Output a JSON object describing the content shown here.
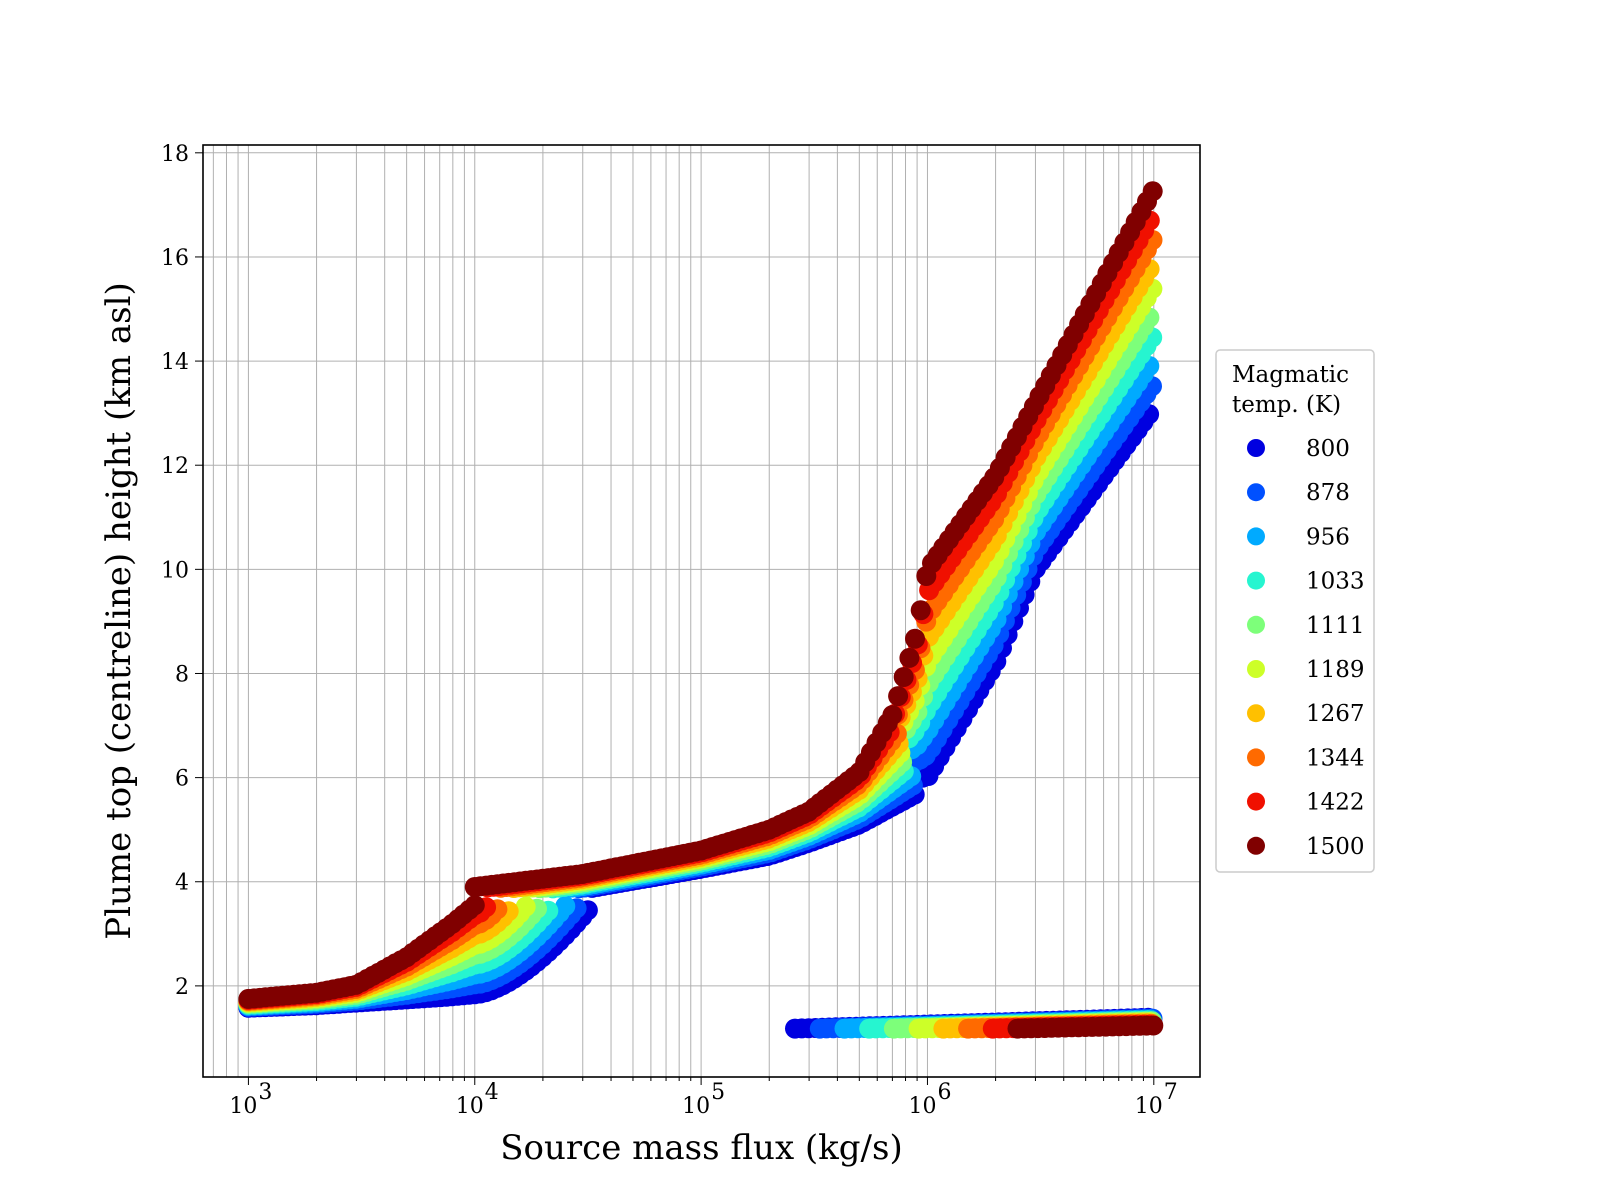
{
  "chart_data": {
    "type": "scatter",
    "xlabel": "Source mass flux (kg/s)",
    "ylabel": "Plume top (centreline) height (km asl)",
    "x_scale": "log",
    "xlim": [
      630,
      16000000
    ],
    "ylim": [
      0.25,
      18.15
    ],
    "grid": true,
    "grid_minor_x": true,
    "x_ticks": [
      {
        "value": 1000,
        "base": "10",
        "exp": "3"
      },
      {
        "value": 10000,
        "base": "10",
        "exp": "4"
      },
      {
        "value": 100000,
        "base": "10",
        "exp": "5"
      },
      {
        "value": 1000000,
        "base": "10",
        "exp": "6"
      },
      {
        "value": 10000000,
        "base": "10",
        "exp": "7"
      }
    ],
    "y_ticks": [
      "2",
      "4",
      "6",
      "8",
      "10",
      "12",
      "14",
      "16",
      "18"
    ],
    "legend": {
      "title": [
        "Magmatic",
        "temp. (K)"
      ],
      "placement": "right-outside",
      "entries": [
        {
          "label": "800",
          "color": "#0000e0"
        },
        {
          "label": "878",
          "color": "#0050ff"
        },
        {
          "label": "956",
          "color": "#00aaff"
        },
        {
          "label": "1033",
          "color": "#26f5d0"
        },
        {
          "label": "1111",
          "color": "#7dff7a"
        },
        {
          "label": "1189",
          "color": "#cdff28"
        },
        {
          "label": "1267",
          "color": "#ffc000"
        },
        {
          "label": "1344",
          "color": "#ff6a00"
        },
        {
          "label": "1422",
          "color": "#f01000"
        },
        {
          "label": "1500",
          "color": "#800000"
        }
      ]
    },
    "series_curves": {
      "low_branch_x": [
        1000,
        2000,
        3000,
        5000,
        8000,
        10000
      ],
      "low_branch_y": {
        "800": [
          1.58,
          1.63,
          1.68,
          1.74,
          1.8,
          1.84
        ],
        "1500": [
          1.75,
          1.87,
          2.02,
          2.55,
          3.2,
          3.55
        ]
      },
      "low_branch_end_x": {
        "800": 33000,
        "1500": 10000
      },
      "mid_branch_x": [
        10000,
        30000,
        100000,
        200000,
        300000,
        500000
      ],
      "mid_branch_y": {
        "800": [
          3.55,
          3.85,
          4.25,
          4.5,
          4.75,
          5.1
        ],
        "1500": [
          3.9,
          4.15,
          4.6,
          5.0,
          5.35,
          6.1
        ]
      },
      "upper_branch": {
        "800": {
          "x": [
            1000000,
            2000000,
            3000000,
            10000000
          ],
          "y": [
            6.0,
            8.2,
            10.0,
            13.1
          ]
        },
        "1500": {
          "x": [
            700000,
            900000,
            1000000,
            2000000,
            10000000
          ],
          "y": [
            7.2,
            8.8,
            10.0,
            11.8,
            17.3
          ]
        }
      },
      "bottom_branch": {
        "x_start": {
          "800": 260000,
          "1500": 2500000
        },
        "x_end": 10000000,
        "y_min": 1.1,
        "y_max": 1.6
      }
    }
  }
}
